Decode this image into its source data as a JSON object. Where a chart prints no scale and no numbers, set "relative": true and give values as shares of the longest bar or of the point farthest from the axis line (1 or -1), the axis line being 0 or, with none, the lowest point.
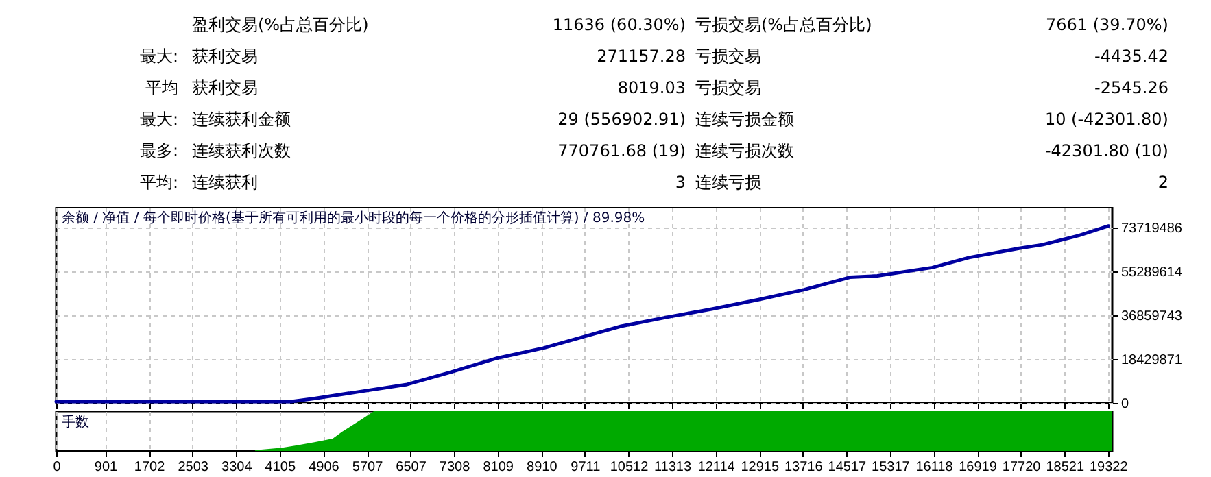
{
  "chart_data": [
    {
      "type": "other",
      "annotations": [
        "盈利交易(%占总百分比)",
        "11636 (60.30%)",
        "亏损交易(%占总百分比)",
        "7661 (39.70%)",
        "最大:",
        "获利交易",
        "271157.28",
        "亏损交易",
        "-4435.42",
        "平均",
        "获利交易",
        "8019.03",
        "亏损交易",
        "-2545.26",
        "最大:",
        "连续获利金额",
        "29 (556902.91)",
        "连续亏损金额",
        "10 (-42301.80)",
        "最多:",
        "连续获利次数",
        "770761.68 (19)",
        "连续亏损次数",
        "-42301.80 (10)",
        "平均:",
        "连续获利",
        "3",
        "连续亏损",
        "2"
      ]
    },
    {
      "type": "line",
      "title": "余额 / 净值 / 每个即时价格(基于所有可利用的最小时段的每一个价格的分形插值计算) / 89.98%",
      "x": [
        0,
        4314,
        4743,
        5583,
        6425,
        7265,
        8106,
        8948,
        9788,
        10377,
        11218,
        12059,
        12898,
        13740,
        14581,
        15085,
        16095,
        16768,
        17692,
        18113,
        18786,
        19332
      ],
      "series": [
        {
          "color": "#0000a0",
          "values": [
            600000,
            600000,
            1900000,
            4800000,
            7700000,
            13100000,
            18900000,
            23100000,
            28500000,
            32300000,
            36100000,
            39600000,
            43500000,
            47700000,
            52900000,
            53500000,
            57000000,
            61200000,
            65100000,
            66600000,
            70500000,
            74500000
          ]
        }
      ],
      "xlim": [
        0,
        19400
      ],
      "ylim": [
        0,
        82500000
      ],
      "xticks": [
        0,
        901,
        1702,
        2503,
        3304,
        4105,
        4906,
        5707,
        6507,
        7308,
        8109,
        8910,
        9711,
        10512,
        11313,
        12114,
        12915,
        13716,
        14517,
        15317,
        16118,
        16919,
        17720,
        18521,
        19322
      ],
      "yticks": [
        0,
        18429871,
        36859743,
        55289614,
        73719486
      ],
      "grid": true,
      "tick_labels": "y",
      "line_style": "solid"
    },
    {
      "type": "area",
      "title": "手数",
      "relative": true,
      "x": [
        0,
        3650,
        3660,
        4154,
        4407,
        4743,
        5079,
        5247,
        5583,
        5835,
        19400
      ],
      "series": [
        {
          "color": "#00aa00",
          "values": [
            0,
            0,
            0.02,
            0.08,
            0.14,
            0.22,
            0.31,
            0.48,
            0.77,
            1,
            1
          ]
        }
      ],
      "xlim": [
        0,
        19400
      ],
      "xticks": [
        0,
        901,
        1702,
        2503,
        3304,
        4105,
        4906,
        5707,
        6507,
        7308,
        8109,
        8910,
        9711,
        10512,
        11313,
        12114,
        12915,
        13716,
        14517,
        15317,
        16118,
        16919,
        17720,
        18521,
        19322
      ],
      "grid": "x",
      "tick_labels": "x"
    }
  ]
}
